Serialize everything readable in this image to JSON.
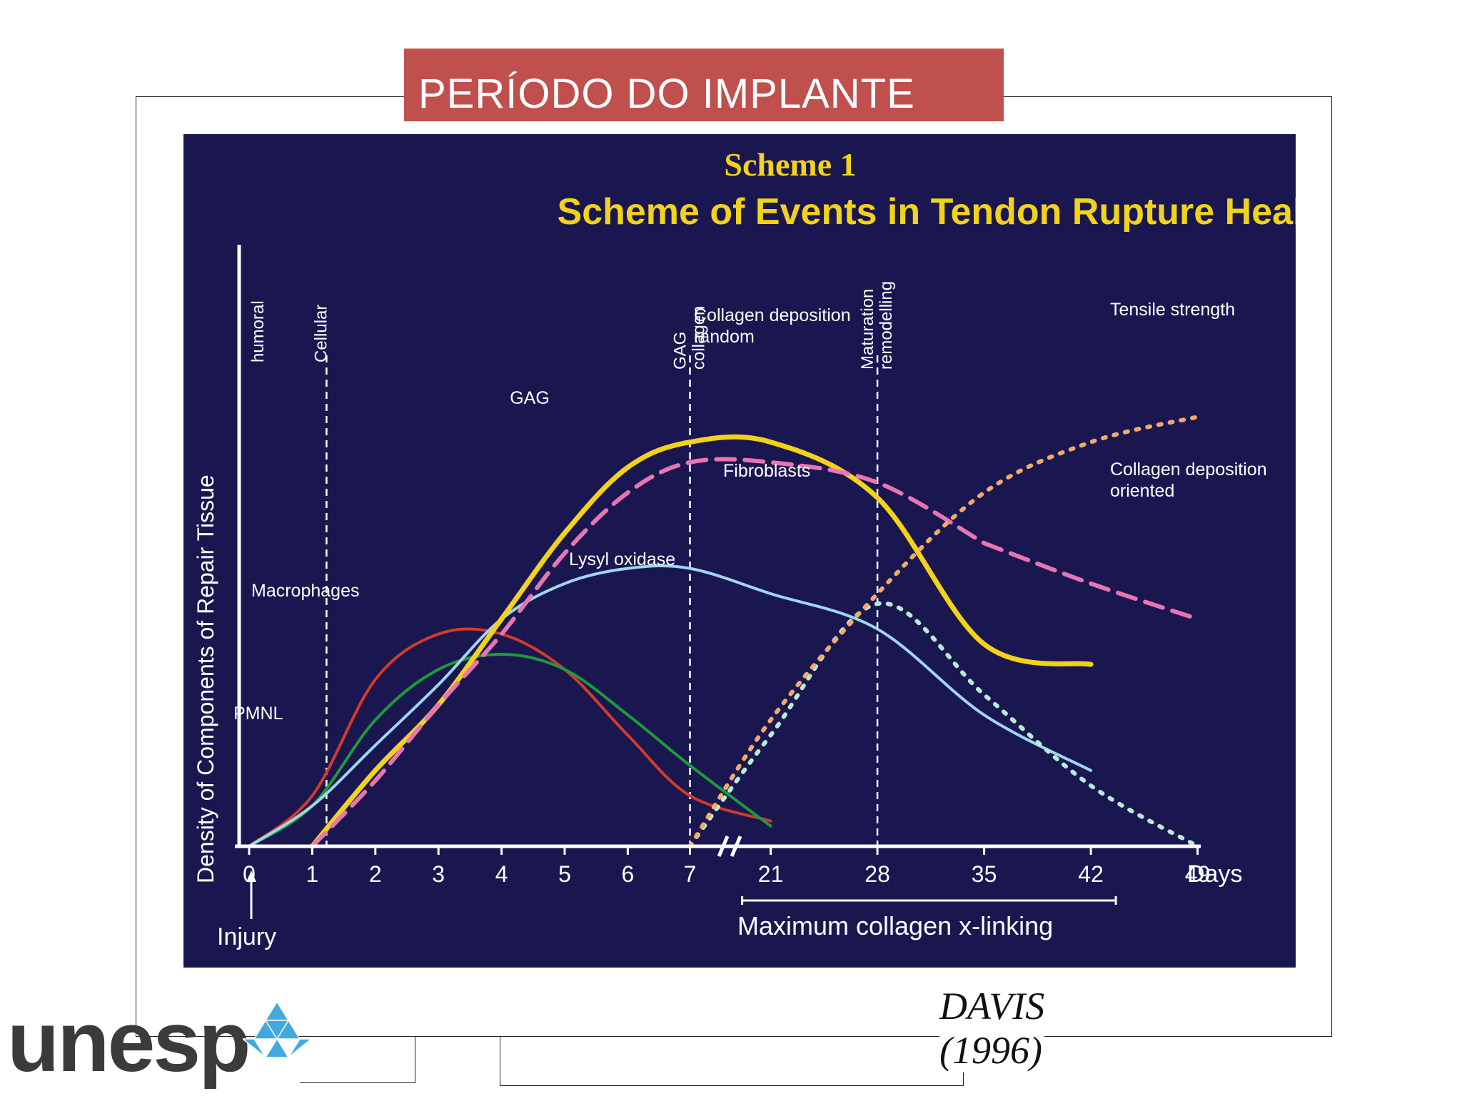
{
  "slide": {
    "title": "PERÍODO DO IMPLANTE",
    "citation_line1": "DAVIS",
    "citation_line2": "(1996)",
    "logo_text": "unesp",
    "accent_color": "#c0504d",
    "logo_mark_color": "#3fa9e0"
  },
  "chart_data": {
    "type": "line",
    "title": "Scheme 1",
    "subtitle": "Scheme of Events in Tendon Rupture Healing",
    "ylabel": "Density of Components of Repair Tissue",
    "xlabel": "Days",
    "x_ticks": [
      "0",
      "1",
      "2",
      "3",
      "4",
      "5",
      "6",
      "7",
      "21",
      "28",
      "35",
      "42",
      "49"
    ],
    "x_note": "Injury",
    "bracket_label": "Maximum collagen x-linking",
    "bracket_range": [
      "21",
      "42"
    ],
    "phase_labels": [
      {
        "label": "humoral",
        "day": 0
      },
      {
        "label": "Cellular",
        "day": 1
      },
      {
        "label": "GAG collagen",
        "day": 7
      },
      {
        "label": "Maturation remodelling",
        "day": 28
      }
    ],
    "ylim": [
      0,
      1
    ],
    "series": [
      {
        "name": "PMNL",
        "color": "#d23a2a",
        "style": "solid",
        "x": [
          0,
          1,
          2,
          3,
          4,
          5,
          6,
          7,
          21
        ],
        "y": [
          0,
          0.1,
          0.33,
          0.42,
          0.42,
          0.35,
          0.22,
          0.1,
          0.05
        ]
      },
      {
        "name": "Macrophages",
        "color": "#1e9a3a",
        "style": "solid",
        "x": [
          0,
          1,
          2,
          3,
          4,
          5,
          6,
          7,
          21
        ],
        "y": [
          0,
          0.08,
          0.25,
          0.35,
          0.38,
          0.35,
          0.26,
          0.16,
          0.04
        ]
      },
      {
        "name": "Fibroblasts",
        "color": "#9fd6ef",
        "style": "solid",
        "x": [
          0,
          1,
          2,
          3,
          4,
          5,
          6,
          7,
          21,
          28,
          35,
          42
        ],
        "y": [
          0,
          0.08,
          0.2,
          0.32,
          0.45,
          0.52,
          0.55,
          0.55,
          0.5,
          0.43,
          0.26,
          0.15
        ]
      },
      {
        "name": "GAG",
        "color": "#f2d21b",
        "style": "solid",
        "x": [
          1,
          2,
          3,
          4,
          5,
          6,
          7,
          21,
          28,
          35,
          42
        ],
        "y": [
          0,
          0.15,
          0.28,
          0.45,
          0.62,
          0.75,
          0.8,
          0.8,
          0.69,
          0.4,
          0.36
        ]
      },
      {
        "name": "Collagen deposition random",
        "color": "#e875b2",
        "style": "dashed",
        "x": [
          1,
          2,
          3,
          4,
          5,
          6,
          7,
          21,
          28,
          35
        ],
        "y": [
          0,
          0.13,
          0.28,
          0.42,
          0.58,
          0.7,
          0.76,
          0.76,
          0.72,
          0.6
        ]
      },
      {
        "name": "Collagen deposition oriented",
        "color": "#e875b2",
        "style": "dashed",
        "x": [
          35,
          42,
          49
        ],
        "y": [
          0.6,
          0.52,
          0.45
        ]
      },
      {
        "name": "Lysyl oxidase",
        "color": "#b7ecd6",
        "style": "dotted",
        "x": [
          7,
          21,
          28,
          35,
          42,
          49
        ],
        "y": [
          0,
          0.22,
          0.48,
          0.3,
          0.12,
          0
        ]
      },
      {
        "name": "Tensile strength",
        "color": "#f3a96c",
        "style": "dotted",
        "x": [
          7,
          21,
          28,
          35,
          42,
          49
        ],
        "y": [
          0,
          0.25,
          0.5,
          0.7,
          0.8,
          0.85
        ]
      }
    ]
  }
}
